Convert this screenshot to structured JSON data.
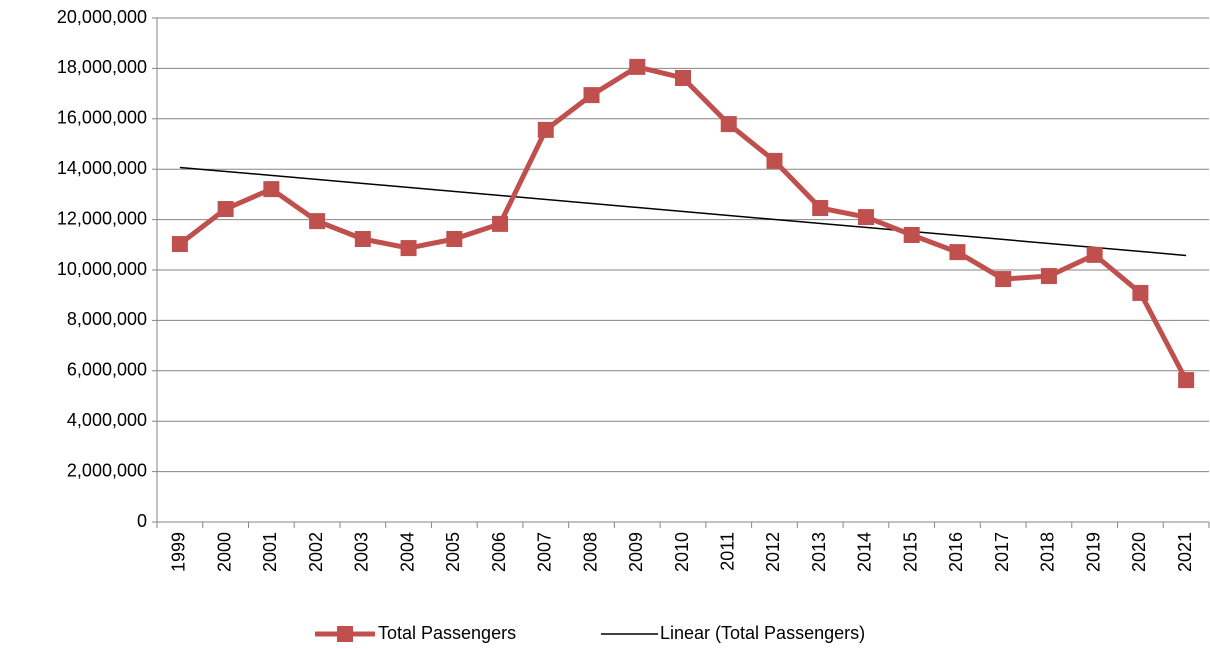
{
  "chart_data": {
    "type": "line",
    "categories": [
      "1999",
      "2000",
      "2001",
      "2002",
      "2003",
      "2004",
      "2005",
      "2006",
      "2007",
      "2008",
      "2009",
      "2010",
      "2011",
      "2012",
      "2013",
      "2014",
      "2015",
      "2016",
      "2017",
      "2018",
      "2019",
      "2020",
      "2021"
    ],
    "series": [
      {
        "name": "Total Passengers",
        "color": "#c0504d",
        "values": [
          11030000,
          12420000,
          13210000,
          11940000,
          11230000,
          10870000,
          11230000,
          11830000,
          15560000,
          16940000,
          18060000,
          17620000,
          15790000,
          14330000,
          12460000,
          12100000,
          11390000,
          10710000,
          9640000,
          9760000,
          10600000,
          9090000,
          5630000
        ]
      }
    ],
    "trendline": {
      "name": "Linear (Total Passengers)",
      "type": "linear",
      "color": "#000000"
    },
    "ylim": [
      0,
      20000000
    ],
    "yticks": [
      0,
      {
        "value": 2000000,
        "label": "2,000,000"
      },
      {
        "value": 4000000,
        "label": "4,000,000"
      },
      {
        "value": 6000000,
        "label": "6,000,000"
      },
      {
        "value": 8000000,
        "label": "8,000,000"
      },
      {
        "value": 10000000,
        "label": "10,000,000"
      },
      {
        "value": 12000000,
        "label": "12,000,000"
      },
      {
        "value": 14000000,
        "label": "14,000,000"
      },
      {
        "value": 16000000,
        "label": "16,000,000"
      },
      {
        "value": 18000000,
        "label": "18,000,000"
      },
      {
        "value": 20000000,
        "label": "20,000,000"
      }
    ],
    "grid": true,
    "legend": "bottom"
  }
}
